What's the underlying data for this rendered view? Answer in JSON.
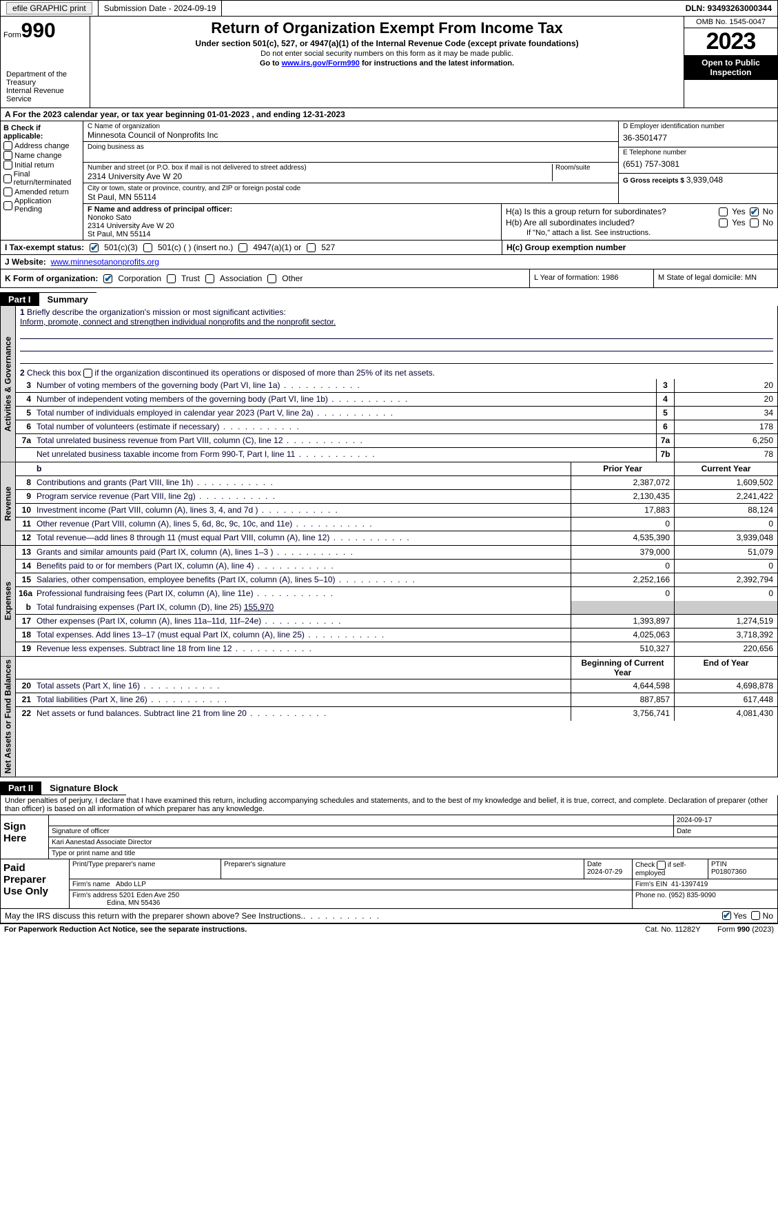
{
  "top": {
    "efile": "efile GRAPHIC print",
    "submission_label": "Submission Date - 2024-09-19",
    "dln": "DLN: 93493263000344"
  },
  "header": {
    "form_small": "Form",
    "form_big": "990",
    "title": "Return of Organization Exempt From Income Tax",
    "sub": "Under section 501(c), 527, or 4947(a)(1) of the Internal Revenue Code (except private foundations)",
    "note": "Do not enter social security numbers on this form as it may be made public.",
    "goto": "Go to ",
    "link": "www.irs.gov/Form990",
    "goto2": " for instructions and the latest information.",
    "dept": "Department of the Treasury\nInternal Revenue Service",
    "omb": "OMB No. 1545-0047",
    "year": "2023",
    "open": "Open to Public Inspection"
  },
  "section_a": "A For the 2023 calendar year, or tax year beginning 01-01-2023    , and ending 12-31-2023",
  "box_b": {
    "label": "B Check if applicable:",
    "items": [
      "Address change",
      "Name change",
      "Initial return",
      "Final return/terminated",
      "Amended return",
      "Application Pending"
    ]
  },
  "box_c": {
    "name_label": "C Name of organization",
    "name": "Minnesota Council of Nonprofits Inc",
    "dba_label": "Doing business as",
    "dba": "",
    "street_label": "Number and street (or P.O. box if mail is not delivered to street address)",
    "street": "2314 University Ave W 20",
    "room_label": "Room/suite",
    "city_label": "City or town, state or province, country, and ZIP or foreign postal code",
    "city": "St Paul, MN  55114"
  },
  "box_d": {
    "label": "D Employer identification number",
    "val": "36-3501477"
  },
  "box_e": {
    "label": "E Telephone number",
    "val": "(651) 757-3081"
  },
  "box_g": {
    "label": "G Gross receipts $ ",
    "val": "3,939,048"
  },
  "box_f": {
    "label": "F  Name and address of principal officer:",
    "name": "Nonoko Sato",
    "street": "2314 University Ave W 20",
    "city": "St Paul, MN  55114"
  },
  "box_h": {
    "ha": "H(a)  Is this a group return for subordinates?",
    "hb": "H(b)  Are all subordinates included?",
    "hb_note": "If \"No,\" attach a list. See instructions.",
    "hc": "H(c)  Group exemption number",
    "yes": "Yes",
    "no": "No"
  },
  "row_i": {
    "label": "I   Tax-exempt status:",
    "o1": "501(c)(3)",
    "o2": "501(c) (  ) (insert no.)",
    "o3": "4947(a)(1) or",
    "o4": "527"
  },
  "row_j": {
    "label": "J   Website:",
    "val": "www.minnesotanonprofits.org"
  },
  "row_k": {
    "label": "K Form of organization:",
    "o1": "Corporation",
    "o2": "Trust",
    "o3": "Association",
    "o4": "Other"
  },
  "row_l": "L Year of formation: 1986",
  "row_m": "M State of legal domicile: MN",
  "part1": {
    "num": "Part I",
    "title": "Summary"
  },
  "vtabs": {
    "ag": "Activities & Governance",
    "rev": "Revenue",
    "exp": "Expenses",
    "na": "Net Assets or Fund Balances"
  },
  "line1": {
    "num": "1",
    "txt": "Briefly describe the organization's mission or most significant activities:",
    "val": "Inform, promote, connect and strengthen individual nonprofits and the nonprofit sector."
  },
  "line2": {
    "num": "2",
    "txt": "Check this box        if the organization discontinued its operations or disposed of more than 25% of its net assets."
  },
  "lines_ag": [
    {
      "n": "3",
      "t": "Number of voting members of the governing body (Part VI, line 1a)",
      "b": "3",
      "v": "20"
    },
    {
      "n": "4",
      "t": "Number of independent voting members of the governing body (Part VI, line 1b)",
      "b": "4",
      "v": "20"
    },
    {
      "n": "5",
      "t": "Total number of individuals employed in calendar year 2023 (Part V, line 2a)",
      "b": "5",
      "v": "34"
    },
    {
      "n": "6",
      "t": "Total number of volunteers (estimate if necessary)",
      "b": "6",
      "v": "178"
    },
    {
      "n": "7a",
      "t": "Total unrelated business revenue from Part VIII, column (C), line 12",
      "b": "7a",
      "v": "6,250"
    },
    {
      "n": "",
      "t": "Net unrelated business taxable income from Form 990-T, Part I, line 11",
      "b": "7b",
      "v": "78"
    }
  ],
  "hdr_py": "Prior Year",
  "hdr_cy": "Current Year",
  "lines_rev": [
    {
      "n": "8",
      "t": "Contributions and grants (Part VIII, line 1h)",
      "p": "2,387,072",
      "c": "1,609,502"
    },
    {
      "n": "9",
      "t": "Program service revenue (Part VIII, line 2g)",
      "p": "2,130,435",
      "c": "2,241,422"
    },
    {
      "n": "10",
      "t": "Investment income (Part VIII, column (A), lines 3, 4, and 7d )",
      "p": "17,883",
      "c": "88,124"
    },
    {
      "n": "11",
      "t": "Other revenue (Part VIII, column (A), lines 5, 6d, 8c, 9c, 10c, and 11e)",
      "p": "0",
      "c": "0"
    },
    {
      "n": "12",
      "t": "Total revenue—add lines 8 through 11 (must equal Part VIII, column (A), line 12)",
      "p": "4,535,390",
      "c": "3,939,048"
    }
  ],
  "lines_exp": [
    {
      "n": "13",
      "t": "Grants and similar amounts paid (Part IX, column (A), lines 1–3 )",
      "p": "379,000",
      "c": "51,079"
    },
    {
      "n": "14",
      "t": "Benefits paid to or for members (Part IX, column (A), line 4)",
      "p": "0",
      "c": "0"
    },
    {
      "n": "15",
      "t": "Salaries, other compensation, employee benefits (Part IX, column (A), lines 5–10)",
      "p": "2,252,166",
      "c": "2,392,794"
    },
    {
      "n": "16a",
      "t": "Professional fundraising fees (Part IX, column (A), line 11e)",
      "p": "0",
      "c": "0"
    }
  ],
  "line16b": {
    "n": "b",
    "t": "Total fundraising expenses (Part IX, column (D), line 25) ",
    "v": "155,970"
  },
  "lines_exp2": [
    {
      "n": "17",
      "t": "Other expenses (Part IX, column (A), lines 11a–11d, 11f–24e)",
      "p": "1,393,897",
      "c": "1,274,519"
    },
    {
      "n": "18",
      "t": "Total expenses. Add lines 13–17 (must equal Part IX, column (A), line 25)",
      "p": "4,025,063",
      "c": "3,718,392"
    },
    {
      "n": "19",
      "t": "Revenue less expenses. Subtract line 18 from line 12",
      "p": "510,327",
      "c": "220,656"
    }
  ],
  "hdr_bcy": "Beginning of Current Year",
  "hdr_eoy": "End of Year",
  "lines_na": [
    {
      "n": "20",
      "t": "Total assets (Part X, line 16)",
      "p": "4,644,598",
      "c": "4,698,878"
    },
    {
      "n": "21",
      "t": "Total liabilities (Part X, line 26)",
      "p": "887,857",
      "c": "617,448"
    },
    {
      "n": "22",
      "t": "Net assets or fund balances. Subtract line 21 from line 20",
      "p": "3,756,741",
      "c": "4,081,430"
    }
  ],
  "part2": {
    "num": "Part II",
    "title": "Signature Block"
  },
  "perjury": "Under penalties of perjury, I declare that I have examined this return, including accompanying schedules and statements, and to the best of my knowledge and belief, it is true, correct, and complete. Declaration of preparer (other than officer) is based on all information of which preparer has any knowledge.",
  "sign": {
    "here": "Sign Here",
    "sigof": "Signature of officer",
    "date": "Date",
    "dateval": "2024-09-17",
    "name": "Kari Aanestad Associate Director",
    "typeprint": "Type or print name and title"
  },
  "prep": {
    "label": "Paid Preparer Use Only",
    "h1": "Print/Type preparer's name",
    "h2": "Preparer's signature",
    "h3": "Date",
    "h3v": "2024-07-29",
    "h4": "Check         if self-employed",
    "h5": "PTIN",
    "h5v": "P01807360",
    "firm": "Firm's name",
    "firmv": "Abdo LLP",
    "ein": "Firm's EIN",
    "einv": "41-1397419",
    "addr": "Firm's address",
    "addrv": "5201 Eden Ave 250",
    "addrv2": "Edina, MN  55436",
    "phone": "Phone no.",
    "phonev": "(952) 835-9090"
  },
  "discuss": {
    "txt": "May the IRS discuss this return with the preparer shown above? See Instructions.",
    "yes": "Yes",
    "no": "No"
  },
  "footer": {
    "left": "For Paperwork Reduction Act Notice, see the separate instructions.",
    "mid": "Cat. No. 11282Y",
    "right": "Form 990 (2023)"
  }
}
